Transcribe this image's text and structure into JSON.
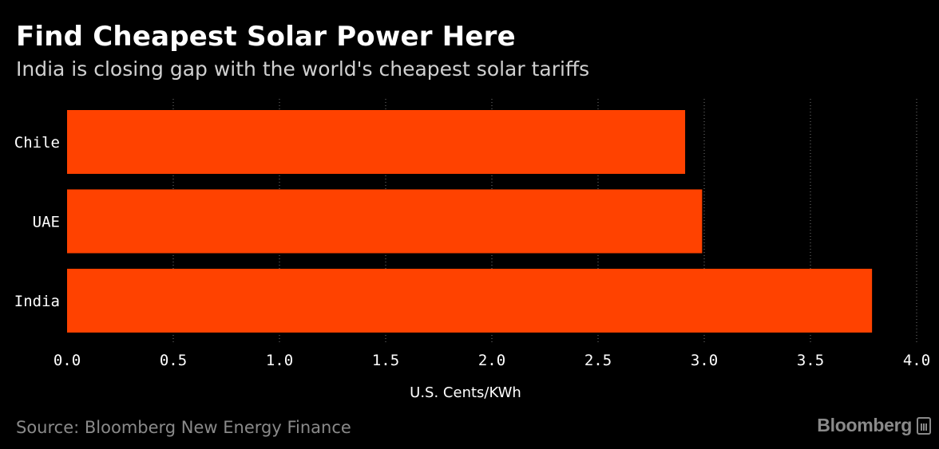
{
  "header": {
    "title": "Find Cheapest Solar Power Here",
    "subtitle": "India is closing gap with the world's cheapest solar tariffs"
  },
  "footer": {
    "source": "Source: Bloomberg New Energy Finance",
    "brand": "Bloomberg"
  },
  "colors": {
    "background": "#000000",
    "bar": "#ff4200",
    "grid": "#777777",
    "text": "#ffffff"
  },
  "chart_data": {
    "type": "bar",
    "orientation": "horizontal",
    "title": "Find Cheapest Solar Power Here",
    "subtitle": "India is closing gap with the world's cheapest solar tariffs",
    "categories": [
      "Chile",
      "UAE",
      "India"
    ],
    "values": [
      2.91,
      2.99,
      3.79
    ],
    "xlabel": "U.S. Cents/KWh",
    "ylabel": "",
    "xlim": [
      0,
      4.0
    ],
    "xticks": [
      "0.0",
      "0.5",
      "1.0",
      "1.5",
      "2.0",
      "2.5",
      "3.0",
      "3.5",
      "4.0"
    ],
    "grid": true,
    "legend": "none"
  }
}
